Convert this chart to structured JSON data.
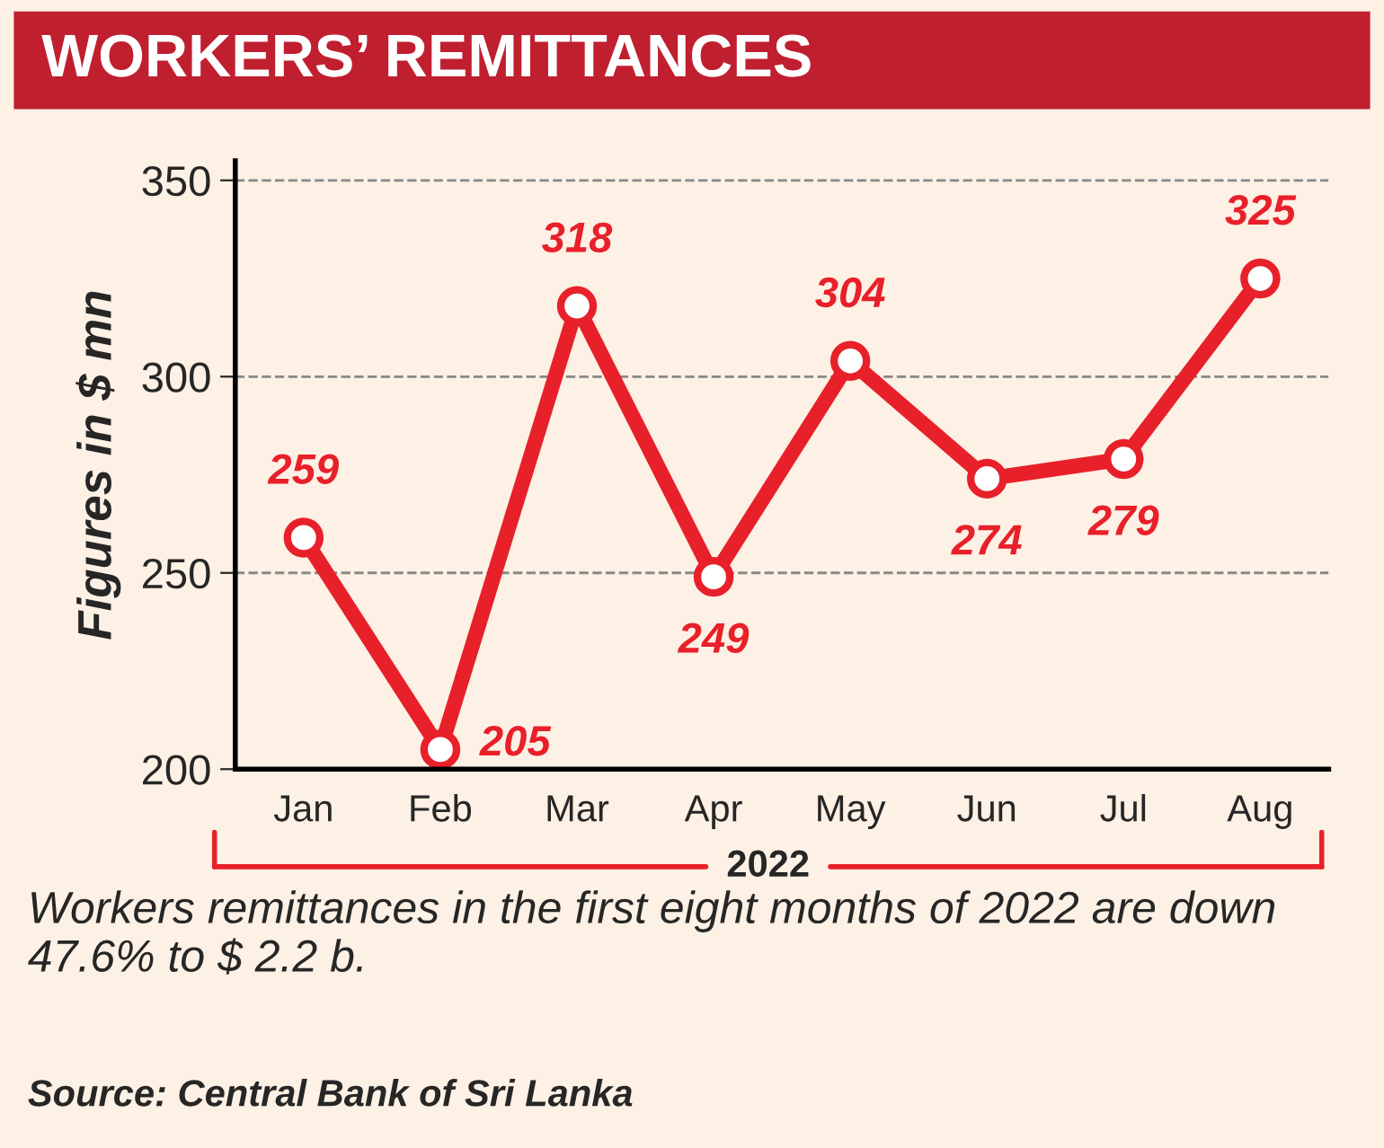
{
  "chart_data": {
    "type": "line",
    "title": "WORKERS’ REMITTANCES",
    "ylabel": "Figures in $ mn",
    "xlabel": "2022",
    "categories": [
      "Jan",
      "Feb",
      "Mar",
      "Apr",
      "May",
      "Jun",
      "Jul",
      "Aug"
    ],
    "series": [
      {
        "color": "#e8202a",
        "values": [
          259,
          205,
          318,
          249,
          304,
          274,
          279,
          325
        ]
      }
    ],
    "ylim": [
      200,
      355
    ],
    "yticks": [
      200,
      250,
      300,
      350
    ],
    "grid": "y",
    "marker": "circle",
    "line_style": "solid",
    "data_labels": true,
    "legend": false,
    "annotations": [
      "Workers remittances in the first eight months of 2022 are down 47.6% to $ 2.2 b.",
      "Source: Central Bank of Sri Lanka"
    ]
  }
}
